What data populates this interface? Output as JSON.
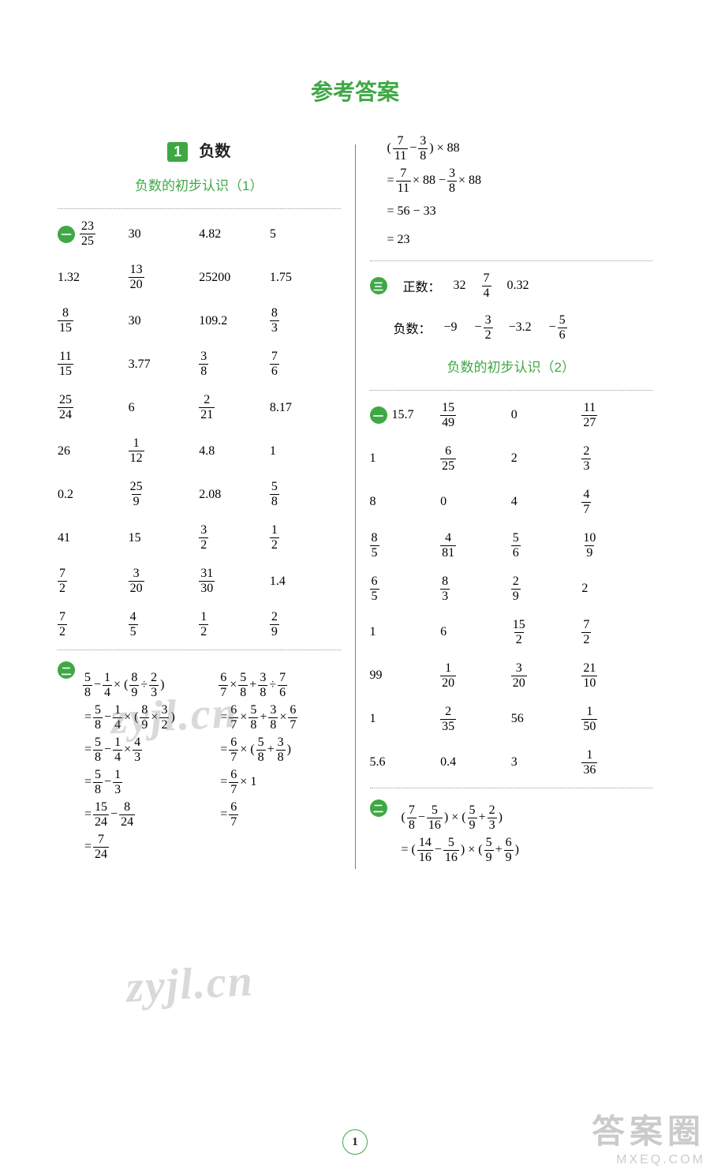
{
  "title": "参考答案",
  "chapter": {
    "num": "1",
    "name": "负数"
  },
  "sec1": {
    "title": "负数的初步认识（1）"
  },
  "sec2": {
    "title": "负数的初步认识（2）"
  },
  "badges": {
    "q1": "一",
    "q2": "二",
    "q3": "三"
  },
  "grid1": [
    [
      "23/25",
      "30",
      "4.82",
      "5"
    ],
    [
      "1.32",
      "13/20",
      "25200",
      "1.75"
    ],
    [
      "8/15",
      "30",
      "109.2",
      "8/3"
    ],
    [
      "11/15",
      "3.77",
      "3/8",
      "7/6"
    ],
    [
      "25/24",
      "6",
      "2/21",
      "8.17"
    ],
    [
      "26",
      "1/12",
      "4.8",
      "1"
    ],
    [
      "0.2",
      "25/9",
      "2.08",
      "5/8"
    ],
    [
      "41",
      "15",
      "3/2",
      "1/2"
    ],
    [
      "7/2",
      "3/20",
      "31/30",
      "1.4"
    ],
    [
      "7/2",
      "4/5",
      "1/2",
      "2/9"
    ]
  ],
  "eqA": {
    "left": [
      "5/8 − 1/4 × ( 8/9 ÷ 2/3 )",
      "= 5/8 − 1/4 × ( 8/9 × 3/2 )",
      "= 5/8 − 1/4 × 4/3",
      "= 5/8 − 1/3",
      "= 15/24 − 8/24",
      "= 7/24"
    ],
    "right": [
      "6/7 × 5/8 + 3/8 ÷ 7/6",
      "= 6/7 × 5/8 + 3/8 × 6/7",
      "= 6/7 × ( 5/8 + 3/8 )",
      "= 6/7 × 1",
      "= 6/7"
    ]
  },
  "eqB": [
    "( 7/11 − 3/8 ) × 88",
    "= 7/11 × 88 − 3/8 × 88",
    "= 56 − 33",
    "= 23"
  ],
  "q3": {
    "posLabel": "正数：",
    "pos": [
      "32",
      "7/4",
      "0.32"
    ],
    "negLabel": "负数：",
    "neg": [
      "−9",
      "− 3/2",
      "−3.2",
      "− 5/6"
    ]
  },
  "grid2": [
    [
      "15.7",
      "15/49",
      "0",
      "11/27"
    ],
    [
      "1",
      "6/25",
      "2",
      "2/3"
    ],
    [
      "8",
      "0",
      "4",
      "4/7"
    ],
    [
      "8/5",
      "4/81",
      "5/6",
      "10/9"
    ],
    [
      "6/5",
      "8/3",
      "2/9",
      "2"
    ],
    [
      "1",
      "6",
      "15/2",
      "7/2"
    ],
    [
      "99",
      "1/20",
      "3/20",
      "21/10"
    ],
    [
      "1",
      "2/35",
      "56",
      "1/50"
    ],
    [
      "5.6",
      "0.4",
      "3",
      "1/36"
    ]
  ],
  "eqC": [
    "( 7/8 − 5/16 ) × ( 5/9 + 2/3 )",
    "= ( 14/16 − 5/16 ) × ( 5/9 + 6/9 )"
  ],
  "pageNum": "1",
  "watermark": "zyjl.cn",
  "corner": {
    "big": "答案圈",
    "small": "MXEQ.COM"
  }
}
